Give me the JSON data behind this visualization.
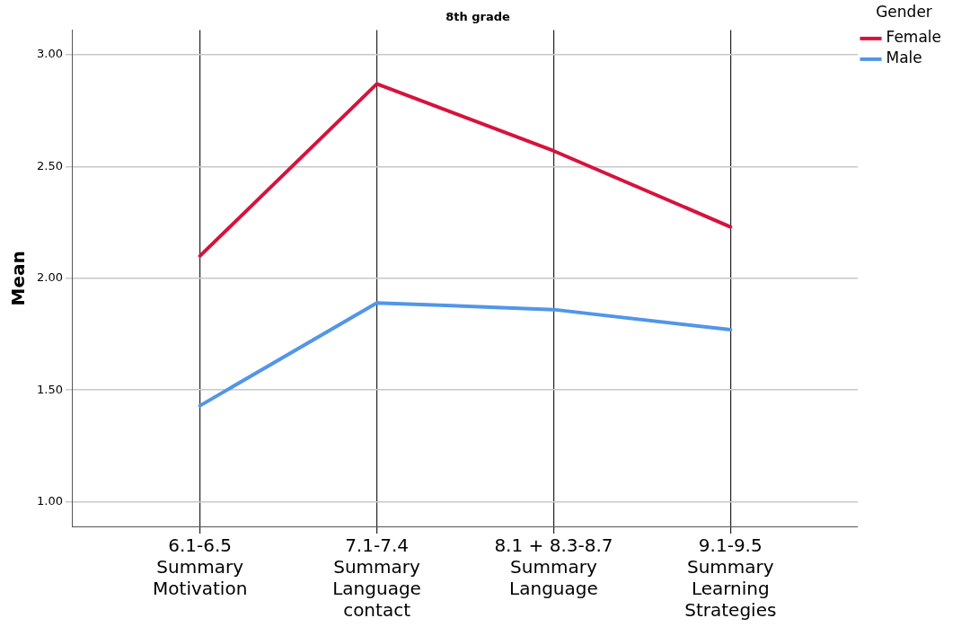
{
  "chart_data": {
    "type": "line",
    "title": "8th grade",
    "ylabel": "Mean",
    "legend_title": "Gender",
    "categories": [
      "6.1-6.5\nSummary\nMotivation",
      "7.1-7.4\nSummary\nLanguage\ncontact",
      "8.1 + 8.3-8.7\nSummary\nLanguage",
      "9.1-9.5\nSummary\nLearning\nStrategies"
    ],
    "series": [
      {
        "name": "Female",
        "color": "#d6133c",
        "values": [
          2.1,
          2.87,
          2.57,
          2.23
        ]
      },
      {
        "name": "Male",
        "color": "#5196e8",
        "values": [
          1.43,
          1.89,
          1.86,
          1.77
        ]
      }
    ],
    "ylim": [
      0.89,
      3.11
    ],
    "yticks": [
      {
        "value": 1,
        "label": "1.00"
      },
      {
        "value": 1.5,
        "label": "1.50"
      },
      {
        "value": 2,
        "label": "2.00"
      },
      {
        "value": 2.5,
        "label": "2.50"
      },
      {
        "value": 3,
        "label": "3.00"
      }
    ],
    "grid": true,
    "legend": "top right",
    "marker": "none",
    "line_style": "solid"
  }
}
